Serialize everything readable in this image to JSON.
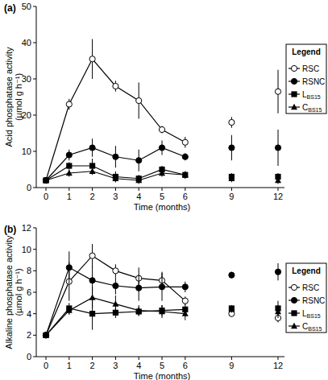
{
  "chart_data": [
    {
      "type": "line",
      "title": "(a)",
      "x_label": "Time (months)",
      "y_label": [
        "Acid phosphatase activity",
        "(µmol g h⁻¹)"
      ],
      "categories": [
        "0",
        "1",
        "2",
        "3",
        "4",
        "5",
        "6",
        null,
        "9",
        null,
        "12"
      ],
      "ylim": [
        0,
        50
      ],
      "yticks": [
        0,
        10,
        20,
        30,
        40,
        50
      ],
      "legend": "right",
      "legend_title": "Legend",
      "series": [
        {
          "name": "RSC",
          "color": "#000000",
          "marker": "circle-open",
          "values": [
            2,
            23,
            35.5,
            28,
            24,
            16,
            12.5,
            null,
            18,
            null,
            26.5
          ],
          "errors": [
            0,
            1.5,
            5.5,
            1.5,
            5,
            1,
            1.5,
            null,
            1.5,
            null,
            6
          ]
        },
        {
          "name": "RSNC",
          "color": "#000000",
          "marker": "circle",
          "values": [
            2,
            9,
            11,
            8.5,
            7.5,
            11,
            8.5,
            null,
            11,
            null,
            11
          ],
          "errors": [
            0,
            1.5,
            2.5,
            3,
            3,
            2,
            1,
            null,
            3.5,
            null,
            5
          ]
        },
        {
          "name": "LBS15",
          "color": "#000000",
          "marker": "square",
          "values": [
            2,
            6,
            6,
            3,
            2.5,
            5,
            3.5,
            null,
            3,
            null,
            3
          ],
          "errors": [
            0,
            1,
            2,
            1.5,
            1,
            1,
            1,
            null,
            1,
            null,
            1
          ]
        },
        {
          "name": "CBS15",
          "color": "#000000",
          "marker": "triangle",
          "values": [
            2,
            4,
            4.5,
            2.5,
            2,
            4,
            3.5,
            null,
            2.5,
            null,
            2
          ],
          "errors": [
            0,
            1,
            1,
            1,
            1,
            1,
            1,
            null,
            1,
            null,
            1
          ]
        }
      ]
    },
    {
      "type": "line",
      "title": "(b)",
      "x_label": "Time (months)",
      "y_label": [
        "Alkaline phosphatase activity",
        "(µmol g h⁻¹)"
      ],
      "categories": [
        "0",
        "1",
        "2",
        "3",
        "4",
        "5",
        "6",
        null,
        "9",
        null,
        "12"
      ],
      "ylim": [
        0,
        12
      ],
      "yticks": [
        0,
        2,
        4,
        6,
        8,
        10,
        12
      ],
      "legend": "right",
      "legend_title": "Legend",
      "series": [
        {
          "name": "RSC",
          "color": "#000000",
          "marker": "circle-open",
          "values": [
            2,
            7,
            9.4,
            8,
            7.3,
            7.1,
            5.2,
            null,
            4,
            null,
            3.6
          ],
          "errors": [
            0,
            1.8,
            1.1,
            0.6,
            1,
            0.8,
            0.4,
            null,
            0.3,
            null,
            0.4
          ]
        },
        {
          "name": "RSNC",
          "color": "#000000",
          "marker": "circle",
          "values": [
            2,
            8.3,
            7.1,
            6.6,
            6.4,
            6.5,
            6.5,
            null,
            7.6,
            null,
            7.9
          ],
          "errors": [
            0,
            1.5,
            1.3,
            0.8,
            1.2,
            1.3,
            0.5,
            null,
            0.3,
            null,
            0.8
          ]
        },
        {
          "name": "LBS15",
          "color": "#000000",
          "marker": "square",
          "values": [
            2,
            4.5,
            4,
            4.1,
            4.2,
            4.3,
            4.4,
            null,
            4.5,
            null,
            4.5
          ],
          "errors": [
            0,
            0.5,
            1.5,
            0.5,
            0.4,
            0.5,
            0.5,
            null,
            0.3,
            null,
            0.7
          ]
        },
        {
          "name": "CBS15",
          "color": "#000000",
          "marker": "triangle",
          "values": [
            2,
            4.3,
            5.5,
            4.9,
            4.3,
            4.2,
            4,
            null,
            4.4,
            null,
            4.2
          ],
          "errors": [
            0,
            0.4,
            1,
            0.8,
            0.5,
            0.6,
            0.6,
            null,
            0.3,
            null,
            0.6
          ]
        }
      ]
    }
  ]
}
